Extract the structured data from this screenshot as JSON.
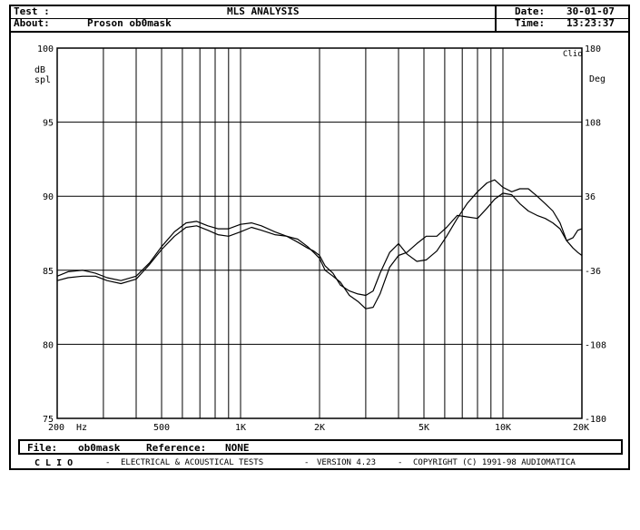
{
  "header": {
    "test_label": "Test :",
    "about_label": "About:",
    "about_value": "Proson ob0mask",
    "title": "MLS ANALYSIS",
    "date_label": "Date:",
    "date_value": "30-01-07",
    "time_label": "Time:",
    "time_value": "13:23:37"
  },
  "footer": {
    "file_label": "File:",
    "file_value": "ob0mask",
    "reference_label": "Reference:",
    "reference_value": "NONE"
  },
  "credit": {
    "brand": "C L I O",
    "dash1": "-",
    "tests": "ELECTRICAL & ACOUSTICAL TESTS",
    "dash2": "-",
    "version": "VERSION 4.23",
    "dash3": "-",
    "copyright": "COPYRIGHT (C) 1991-98 AUDIOMATICA"
  },
  "chart_data": {
    "type": "line",
    "left_axis_label": [
      "dB",
      "spl"
    ],
    "right_axis_label": "Deg",
    "corner_label": "Clio",
    "x_unit": "Hz",
    "xscale": "log",
    "xlim": [
      200,
      20000
    ],
    "ylim": [
      75,
      100
    ],
    "y2lim": [
      -180,
      180
    ],
    "grid": true,
    "x_ticks": [
      {
        "label": "200",
        "value": 200
      },
      {
        "label": "500",
        "value": 500
      },
      {
        "label": "1K",
        "value": 1000
      },
      {
        "label": "2K",
        "value": 2000
      },
      {
        "label": "5K",
        "value": 5000
      },
      {
        "label": "10K",
        "value": 10000
      },
      {
        "label": "20K",
        "value": 20000
      }
    ],
    "x_gridlines": [
      300,
      400,
      500,
      600,
      700,
      800,
      900,
      1000,
      2000,
      3000,
      4000,
      5000,
      6000,
      7000,
      8000,
      9000,
      10000
    ],
    "y_ticks": [
      {
        "label": "100",
        "value": 100
      },
      {
        "label": "95",
        "value": 95
      },
      {
        "label": "90",
        "value": 90
      },
      {
        "label": "85",
        "value": 85
      },
      {
        "label": "80",
        "value": 80
      },
      {
        "label": "75",
        "value": 75
      }
    ],
    "y2_ticks": [
      {
        "label": "180",
        "value": 180
      },
      {
        "label": "108",
        "value": 108
      },
      {
        "label": "36",
        "value": 36
      },
      {
        "label": "-36",
        "value": -36
      },
      {
        "label": "-108",
        "value": -108
      },
      {
        "label": "-180",
        "value": -180
      }
    ],
    "series": [
      {
        "color": "#000000",
        "points": [
          [
            200,
            84.6
          ],
          [
            220,
            84.9
          ],
          [
            250,
            85.0
          ],
          [
            280,
            84.8
          ],
          [
            310,
            84.5
          ],
          [
            350,
            84.3
          ],
          [
            400,
            84.6
          ],
          [
            450,
            85.5
          ],
          [
            500,
            86.6
          ],
          [
            560,
            87.6
          ],
          [
            620,
            88.2
          ],
          [
            680,
            88.3
          ],
          [
            750,
            88.0
          ],
          [
            820,
            87.8
          ],
          [
            900,
            87.8
          ],
          [
            1000,
            88.1
          ],
          [
            1100,
            88.2
          ],
          [
            1200,
            88.0
          ],
          [
            1350,
            87.6
          ],
          [
            1500,
            87.3
          ],
          [
            1650,
            86.9
          ],
          [
            1800,
            86.5
          ],
          [
            1900,
            86.3
          ],
          [
            2000,
            86.0
          ],
          [
            2100,
            85.3
          ],
          [
            2250,
            84.8
          ],
          [
            2400,
            84.0
          ],
          [
            2600,
            83.6
          ],
          [
            2800,
            83.4
          ],
          [
            3000,
            83.3
          ],
          [
            3200,
            83.6
          ],
          [
            3400,
            84.8
          ],
          [
            3700,
            86.2
          ],
          [
            4000,
            86.8
          ],
          [
            4300,
            86.1
          ],
          [
            4700,
            85.6
          ],
          [
            5100,
            85.7
          ],
          [
            5600,
            86.3
          ],
          [
            6100,
            87.3
          ],
          [
            6700,
            88.5
          ],
          [
            7300,
            89.5
          ],
          [
            8000,
            90.3
          ],
          [
            8700,
            90.9
          ],
          [
            9300,
            91.1
          ],
          [
            10000,
            90.6
          ],
          [
            10800,
            90.3
          ],
          [
            11600,
            90.5
          ],
          [
            12500,
            90.5
          ],
          [
            13500,
            90.0
          ],
          [
            14500,
            89.5
          ],
          [
            15500,
            89.0
          ],
          [
            16500,
            88.2
          ],
          [
            17500,
            87.0
          ],
          [
            18500,
            86.5
          ],
          [
            19300,
            86.2
          ],
          [
            20000,
            86.0
          ]
        ]
      },
      {
        "color": "#000000",
        "points": [
          [
            200,
            84.3
          ],
          [
            220,
            84.5
          ],
          [
            250,
            84.6
          ],
          [
            280,
            84.6
          ],
          [
            310,
            84.3
          ],
          [
            350,
            84.1
          ],
          [
            400,
            84.4
          ],
          [
            450,
            85.4
          ],
          [
            500,
            86.4
          ],
          [
            560,
            87.3
          ],
          [
            620,
            87.9
          ],
          [
            680,
            88.0
          ],
          [
            750,
            87.7
          ],
          [
            820,
            87.4
          ],
          [
            900,
            87.3
          ],
          [
            1000,
            87.6
          ],
          [
            1100,
            87.9
          ],
          [
            1200,
            87.7
          ],
          [
            1350,
            87.4
          ],
          [
            1500,
            87.3
          ],
          [
            1650,
            87.1
          ],
          [
            1800,
            86.6
          ],
          [
            1900,
            86.2
          ],
          [
            2000,
            85.8
          ],
          [
            2100,
            85.0
          ],
          [
            2250,
            84.6
          ],
          [
            2400,
            84.2
          ],
          [
            2600,
            83.3
          ],
          [
            2800,
            82.9
          ],
          [
            3000,
            82.4
          ],
          [
            3200,
            82.5
          ],
          [
            3400,
            83.4
          ],
          [
            3700,
            85.2
          ],
          [
            4000,
            86.0
          ],
          [
            4300,
            86.2
          ],
          [
            4700,
            86.8
          ],
          [
            5100,
            87.3
          ],
          [
            5600,
            87.3
          ],
          [
            6100,
            87.9
          ],
          [
            6700,
            88.7
          ],
          [
            7300,
            88.6
          ],
          [
            8000,
            88.5
          ],
          [
            8700,
            89.2
          ],
          [
            9300,
            89.8
          ],
          [
            10000,
            90.2
          ],
          [
            10800,
            90.1
          ],
          [
            11600,
            89.5
          ],
          [
            12500,
            89.0
          ],
          [
            13500,
            88.7
          ],
          [
            14500,
            88.5
          ],
          [
            15500,
            88.2
          ],
          [
            16500,
            87.8
          ],
          [
            17500,
            87.0
          ],
          [
            18500,
            87.2
          ],
          [
            19300,
            87.7
          ],
          [
            20000,
            87.8
          ]
        ]
      }
    ]
  }
}
